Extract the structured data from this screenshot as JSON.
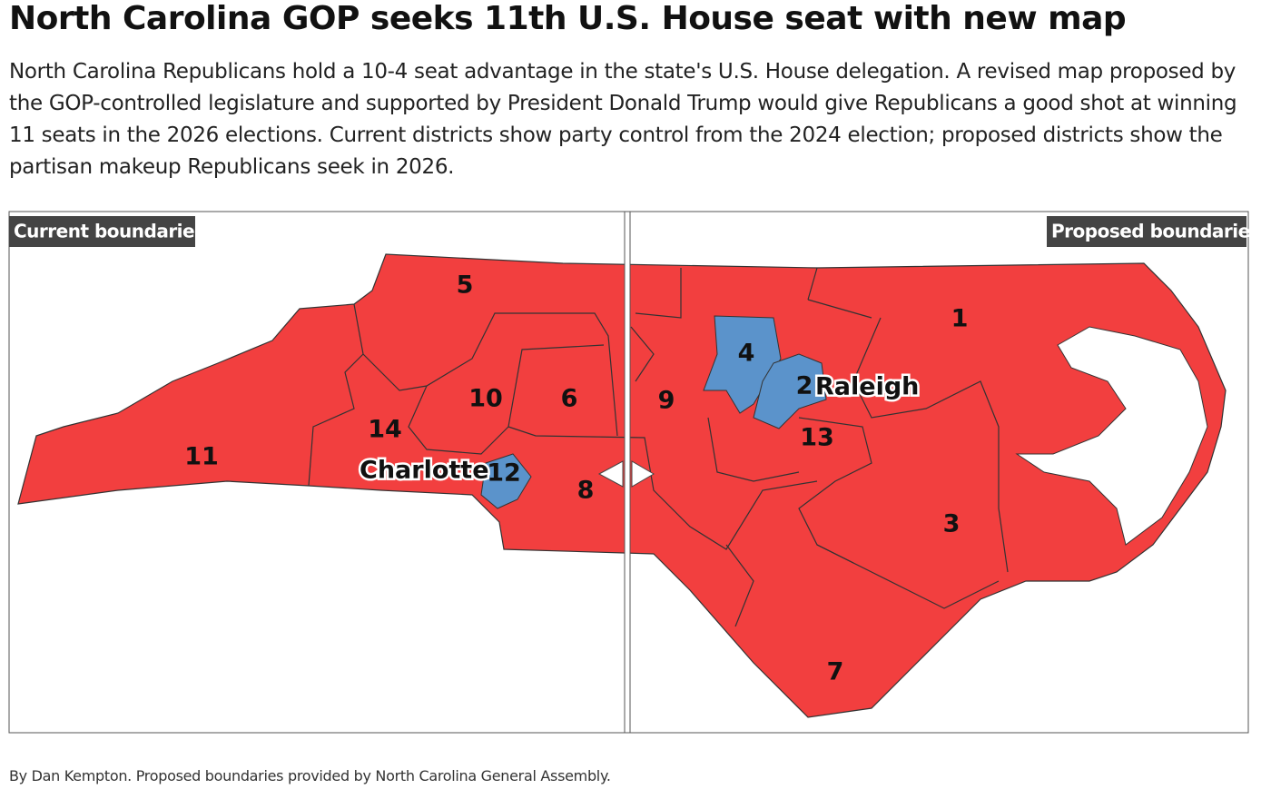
{
  "header": {
    "title": "North Carolina GOP seeks 11th U.S. House seat with new map",
    "description": "North Carolina Republicans hold a 10-4 seat advantage in the state's U.S. House delegation. A revised map proposed by the GOP-controlled legislature and supported by President Donald Trump would give Republicans a good shot at winning 11 seats in the 2026 elections. Current districts show party control from the 2024 election; proposed districts show the partisan makeup Republicans seek in 2026."
  },
  "map": {
    "left_label": "Current boundaries",
    "right_label": "Proposed boundaries",
    "district_labels": [
      "5",
      "10",
      "6",
      "14",
      "11",
      "12",
      "8",
      "9",
      "4",
      "2",
      "13",
      "1",
      "3",
      "7"
    ],
    "city_labels": [
      "Charlotte",
      "Raleigh"
    ]
  },
  "footer": {
    "credit": "By Dan Kempton. Proposed boundaries provided by North Carolina General Assembly."
  }
}
